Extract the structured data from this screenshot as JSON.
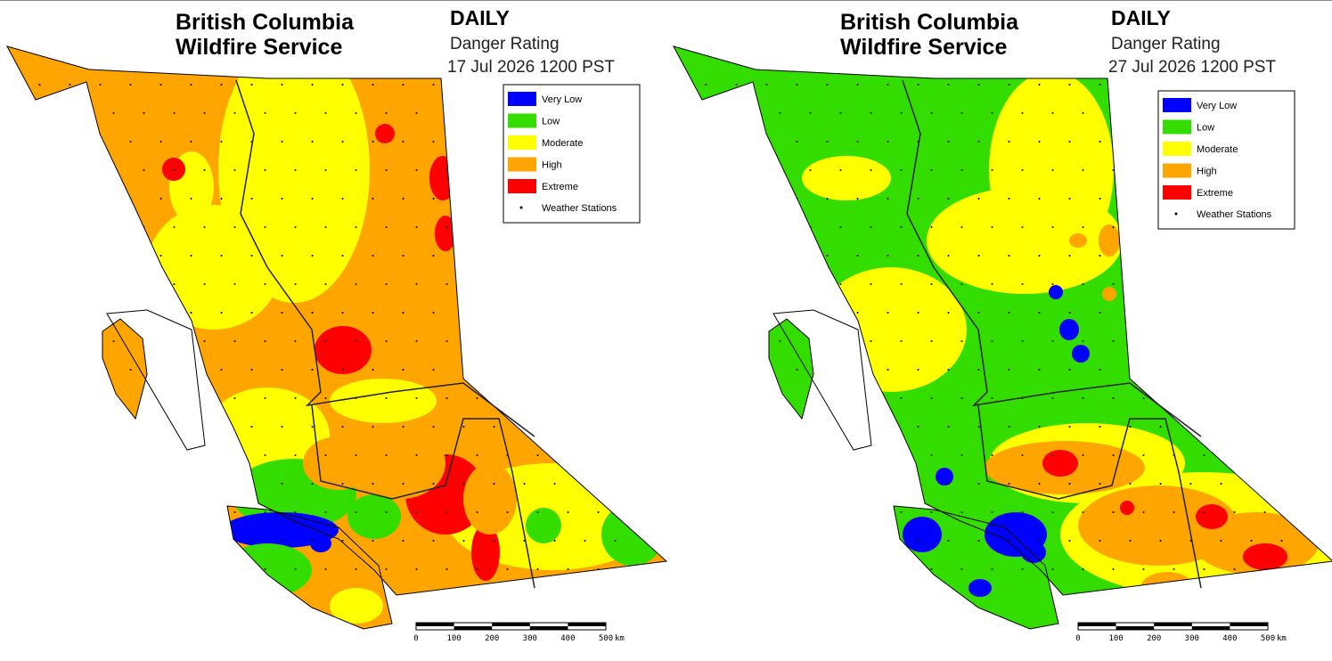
{
  "maps": [
    {
      "title_line1": "British Columbia",
      "title_line2": "Wildfire Service",
      "heading": "DAILY",
      "subtitle": "Danger Rating",
      "timestamp": "17 Jul 2026 1200 PST",
      "legend": [
        {
          "label": "Very Low",
          "color": "#0000ff"
        },
        {
          "label": "Low",
          "color": "#33dd00"
        },
        {
          "label": "Moderate",
          "color": "#ffff00"
        },
        {
          "label": "High",
          "color": "#ffa500"
        },
        {
          "label": "Extreme",
          "color": "#ff0000"
        }
      ],
      "stations_label": "Weather Stations",
      "scale": {
        "ticks": [
          0,
          100,
          200,
          300,
          400,
          500
        ],
        "unit": "km"
      }
    },
    {
      "title_line1": "British Columbia",
      "title_line2": "Wildfire Service",
      "heading": "DAILY",
      "subtitle": "Danger Rating",
      "timestamp": "27 Jul 2026 1200 PST",
      "legend": [
        {
          "label": "Very Low",
          "color": "#0000ff"
        },
        {
          "label": "Low",
          "color": "#33dd00"
        },
        {
          "label": "Moderate",
          "color": "#ffff00"
        },
        {
          "label": "High",
          "color": "#ffa500"
        },
        {
          "label": "Extreme",
          "color": "#ff0000"
        }
      ],
      "stations_label": "Weather Stations",
      "scale": {
        "ticks": [
          0,
          100,
          200,
          300,
          400,
          500
        ],
        "unit": "km"
      }
    }
  ]
}
